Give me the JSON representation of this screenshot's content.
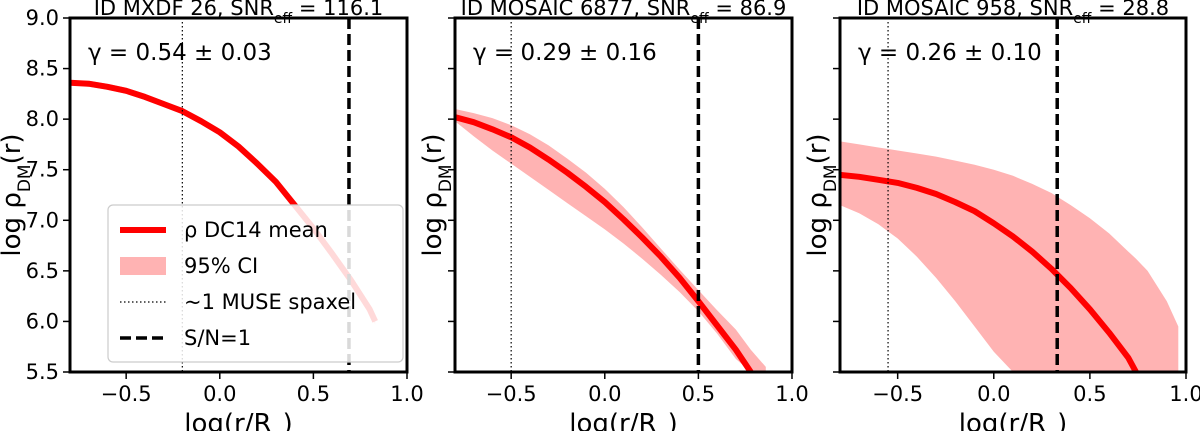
{
  "colors": {
    "mean": "#ff0000",
    "ci": "#ffb3b3",
    "axis": "#000000",
    "legend_border": "#cccccc"
  },
  "shared": {
    "xlabel_text": "log(r/R",
    "xlabel_sub": "e",
    "xlabel_close": ")",
    "ylabel_text": "log ρ",
    "ylabel_sub": "DM",
    "ylabel_close": "(r)"
  },
  "legend": {
    "items": [
      {
        "label": "ρ DC14 mean",
        "kind": "mean"
      },
      {
        "label": "95% CI",
        "kind": "ci"
      },
      {
        "label": "~1 MUSE spaxel",
        "kind": "dotted"
      },
      {
        "label": "S/N=1",
        "kind": "dashed"
      }
    ]
  },
  "chart_data": [
    {
      "type": "line",
      "title_prefix": "ID MXDF 26, SNR",
      "title_sub": "eff",
      "title_suffix": " = 116.1",
      "annotation": "γ = 0.54 ± 0.03",
      "xlim": [
        -0.8,
        1.0
      ],
      "ylim": [
        5.5,
        9.0
      ],
      "xticks": [
        "−0.5",
        "0.0",
        "0.5",
        "1.0"
      ],
      "xtick_values": [
        -0.5,
        0.0,
        0.5,
        1.0
      ],
      "yticks": [
        "5.5",
        "6.0",
        "6.5",
        "7.0",
        "7.5",
        "8.0",
        "8.5",
        "9.0"
      ],
      "ytick_values": [
        5.5,
        6.0,
        6.5,
        7.0,
        7.5,
        8.0,
        8.5,
        9.0
      ],
      "show_ytick_labels": true,
      "spaxel_x": -0.2,
      "sn1_x": 0.69,
      "mean": {
        "x": [
          -0.8,
          -0.7,
          -0.6,
          -0.5,
          -0.4,
          -0.3,
          -0.2,
          -0.1,
          0.0,
          0.1,
          0.2,
          0.3,
          0.4,
          0.5,
          0.6,
          0.7,
          0.8,
          0.83
        ],
        "y": [
          8.36,
          8.35,
          8.32,
          8.28,
          8.22,
          8.15,
          8.08,
          7.98,
          7.87,
          7.73,
          7.56,
          7.38,
          7.15,
          6.92,
          6.67,
          6.41,
          6.12,
          6.0
        ]
      },
      "ci_upper": [
        8.38,
        8.38,
        8.35,
        8.31,
        8.25,
        8.18,
        8.1,
        8.0,
        7.89,
        7.75,
        7.59,
        7.41,
        7.18,
        6.95,
        6.7,
        6.44,
        6.15,
        6.03
      ],
      "ci_lower": [
        8.34,
        8.32,
        8.29,
        8.25,
        8.19,
        8.12,
        8.05,
        7.95,
        7.84,
        7.7,
        7.53,
        7.35,
        7.12,
        6.89,
        6.64,
        6.38,
        6.09,
        5.97
      ]
    },
    {
      "type": "line",
      "title_prefix": "ID MOSAIC 6877, SNR",
      "title_sub": "eff",
      "title_suffix": " = 86.9",
      "annotation": "γ = 0.29 ± 0.16",
      "xlim": [
        -0.8,
        1.0
      ],
      "ylim": [
        5.5,
        9.0
      ],
      "xticks": [
        "−0.5",
        "0.0",
        "0.5",
        "1.0"
      ],
      "xtick_values": [
        -0.5,
        0.0,
        0.5,
        1.0
      ],
      "yticks": [],
      "ytick_values": [
        5.5,
        6.0,
        6.5,
        7.0,
        7.5,
        8.0,
        8.5,
        9.0
      ],
      "show_ytick_labels": false,
      "spaxel_x": -0.5,
      "sn1_x": 0.5,
      "mean": {
        "x": [
          -0.8,
          -0.7,
          -0.6,
          -0.5,
          -0.4,
          -0.3,
          -0.2,
          -0.1,
          0.0,
          0.1,
          0.2,
          0.3,
          0.4,
          0.5,
          0.6,
          0.7,
          0.78
        ],
        "y": [
          8.02,
          7.97,
          7.9,
          7.82,
          7.72,
          7.6,
          7.47,
          7.33,
          7.18,
          7.01,
          6.83,
          6.64,
          6.43,
          6.2,
          5.96,
          5.72,
          5.5
        ]
      },
      "ci_upper": [
        8.1,
        8.06,
        8.01,
        7.94,
        7.85,
        7.74,
        7.61,
        7.47,
        7.31,
        7.13,
        6.93,
        6.72,
        6.51,
        6.31,
        6.11,
        5.92,
        5.72
      ],
      "ci_lower": [
        7.98,
        7.83,
        7.69,
        7.56,
        7.43,
        7.3,
        7.17,
        7.04,
        6.91,
        6.77,
        6.62,
        6.46,
        6.29,
        6.1,
        5.88,
        5.63,
        5.5
      ],
      "ci_x_extend": [
        0.86
      ],
      "ci_upper_extend": [
        5.55
      ]
    },
    {
      "type": "line",
      "title_prefix": "ID MOSAIC 958, SNR",
      "title_sub": "eff",
      "title_suffix": " = 28.8",
      "annotation": "γ = 0.26 ± 0.10",
      "xlim": [
        -0.8,
        1.0
      ],
      "ylim": [
        5.5,
        9.0
      ],
      "xticks": [
        "−0.5",
        "0.0",
        "0.5",
        "1.0"
      ],
      "xtick_values": [
        -0.5,
        0.0,
        0.5,
        1.0
      ],
      "yticks": [],
      "ytick_values": [
        5.5,
        6.0,
        6.5,
        7.0,
        7.5,
        8.0,
        8.5,
        9.0
      ],
      "show_ytick_labels": false,
      "spaxel_x": -0.55,
      "sn1_x": 0.33,
      "mean": {
        "x": [
          -0.8,
          -0.7,
          -0.6,
          -0.5,
          -0.4,
          -0.3,
          -0.2,
          -0.1,
          0.0,
          0.1,
          0.2,
          0.3,
          0.4,
          0.5,
          0.6,
          0.7,
          0.74
        ],
        "y": [
          7.45,
          7.43,
          7.4,
          7.37,
          7.32,
          7.26,
          7.18,
          7.09,
          6.97,
          6.84,
          6.69,
          6.52,
          6.33,
          6.12,
          5.89,
          5.64,
          5.5
        ]
      },
      "ci_upper": [
        7.78,
        7.75,
        7.72,
        7.69,
        7.66,
        7.63,
        7.59,
        7.55,
        7.5,
        7.44,
        7.36,
        7.27,
        7.15,
        7.02,
        6.87,
        6.69,
        6.62
      ],
      "ci_lower": [
        7.15,
        7.07,
        6.96,
        6.82,
        6.64,
        6.43,
        6.2,
        5.95,
        5.7,
        5.5,
        5.5,
        5.5,
        5.5,
        5.5,
        5.5,
        5.5,
        5.5
      ],
      "ci_x_extend": [
        0.8,
        0.9,
        0.96
      ],
      "ci_upper_extend": [
        6.5,
        6.2,
        5.95
      ]
    }
  ]
}
